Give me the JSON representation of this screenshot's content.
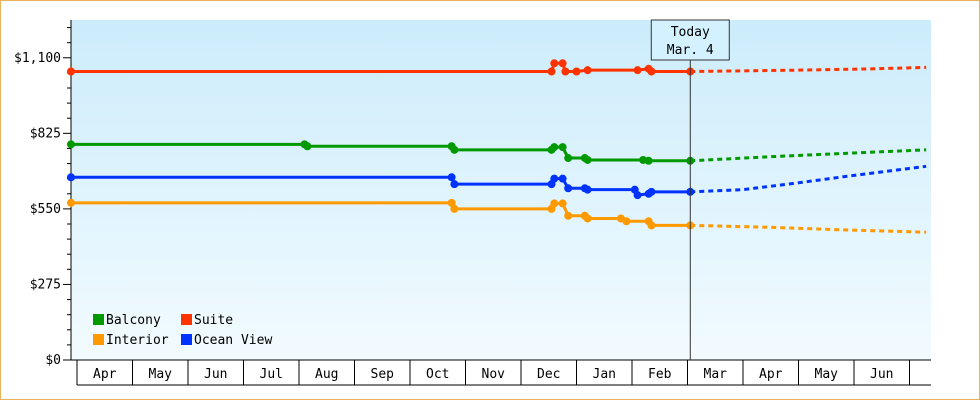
{
  "chart_data": {
    "type": "line",
    "x_months": [
      "Apr",
      "May",
      "Jun",
      "Jul",
      "Aug",
      "Sep",
      "Oct",
      "Nov",
      "Dec",
      "Jan",
      "Feb",
      "Mar",
      "Apr",
      "May",
      "Jun"
    ],
    "ylim": [
      0,
      1237.5
    ],
    "yticks": [
      {
        "value": 0,
        "label": "$0"
      },
      {
        "value": 275,
        "label": "$275"
      },
      {
        "value": 550,
        "label": "$550"
      },
      {
        "value": 825,
        "label": "$825"
      },
      {
        "value": 1100,
        "label": "$1,100"
      }
    ],
    "today": {
      "line1": "Today",
      "line2": "Mar. 4",
      "x": 11.05
    },
    "series": [
      {
        "name": "Suite",
        "color": "#ff3300",
        "points": [
          [
            -0.7,
            1050
          ],
          [
            8.55,
            1050
          ],
          [
            8.6,
            1080
          ],
          [
            8.75,
            1080
          ],
          [
            8.8,
            1050
          ],
          [
            9.0,
            1050
          ],
          [
            9.2,
            1055
          ],
          [
            10.1,
            1055
          ],
          [
            10.3,
            1060
          ],
          [
            10.35,
            1050
          ],
          [
            11.05,
            1050
          ]
        ],
        "forecast": [
          [
            11.05,
            1050
          ],
          [
            13.0,
            1055
          ],
          [
            14.4,
            1060
          ],
          [
            15.3,
            1065
          ]
        ]
      },
      {
        "name": "Balcony",
        "color": "#009900",
        "points": [
          [
            -0.7,
            785
          ],
          [
            4.1,
            785
          ],
          [
            4.15,
            778
          ],
          [
            6.75,
            778
          ],
          [
            6.8,
            765
          ],
          [
            8.55,
            765
          ],
          [
            8.6,
            775
          ],
          [
            8.75,
            775
          ],
          [
            8.85,
            735
          ],
          [
            9.15,
            735
          ],
          [
            9.2,
            728
          ],
          [
            10.2,
            728
          ],
          [
            10.3,
            725
          ],
          [
            11.05,
            725
          ]
        ],
        "forecast": [
          [
            11.05,
            725
          ],
          [
            12.5,
            740
          ],
          [
            13.6,
            750
          ],
          [
            15.3,
            765
          ]
        ]
      },
      {
        "name": "Ocean View",
        "color": "#0033ff",
        "points": [
          [
            -0.7,
            665
          ],
          [
            6.75,
            665
          ],
          [
            6.8,
            640
          ],
          [
            8.55,
            640
          ],
          [
            8.6,
            660
          ],
          [
            8.75,
            660
          ],
          [
            8.85,
            625
          ],
          [
            9.15,
            625
          ],
          [
            9.2,
            620
          ],
          [
            10.05,
            620
          ],
          [
            10.1,
            600
          ],
          [
            10.3,
            605
          ],
          [
            10.35,
            612
          ],
          [
            11.05,
            612
          ]
        ],
        "forecast": [
          [
            11.05,
            612
          ],
          [
            12.0,
            620
          ],
          [
            13.0,
            645
          ],
          [
            14.0,
            672
          ],
          [
            15.3,
            705
          ]
        ]
      },
      {
        "name": "Interior",
        "color": "#ff9900",
        "points": [
          [
            -0.7,
            572
          ],
          [
            6.75,
            572
          ],
          [
            6.8,
            550
          ],
          [
            8.55,
            550
          ],
          [
            8.6,
            570
          ],
          [
            8.75,
            570
          ],
          [
            8.85,
            525
          ],
          [
            9.15,
            525
          ],
          [
            9.2,
            515
          ],
          [
            9.8,
            515
          ],
          [
            9.9,
            505
          ],
          [
            10.3,
            505
          ],
          [
            10.35,
            490
          ],
          [
            11.05,
            490
          ]
        ],
        "forecast": [
          [
            11.05,
            490
          ],
          [
            12.5,
            483
          ],
          [
            13.6,
            475
          ],
          [
            15.3,
            465
          ]
        ]
      }
    ],
    "legend": [
      {
        "name": "Balcony",
        "color": "#009900"
      },
      {
        "name": "Suite",
        "color": "#ff3300"
      },
      {
        "name": "Interior",
        "color": "#ff9900"
      },
      {
        "name": "Ocean View",
        "color": "#0033ff"
      }
    ]
  }
}
